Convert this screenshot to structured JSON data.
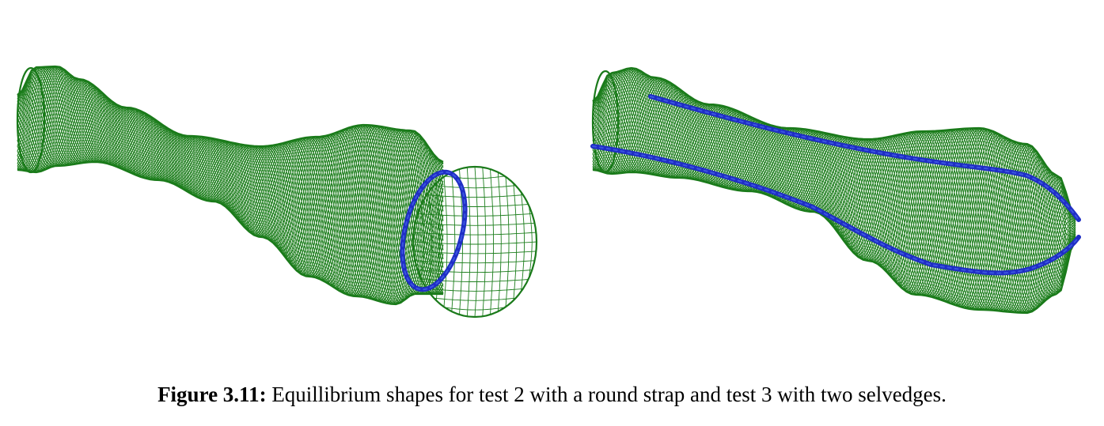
{
  "figure": {
    "label": "Figure 3.11:",
    "caption_text": " Equillibrium shapes for test 2 with a round strap and test 3 with two selvedges."
  },
  "panels": [
    {
      "test": "test 2",
      "feature": "round strap"
    },
    {
      "test": "test 3",
      "feature": "two selvedges"
    }
  ],
  "colors": {
    "mesh": "#1e7f1e",
    "strap": "#1f2ec4",
    "background": "#ffffff"
  }
}
